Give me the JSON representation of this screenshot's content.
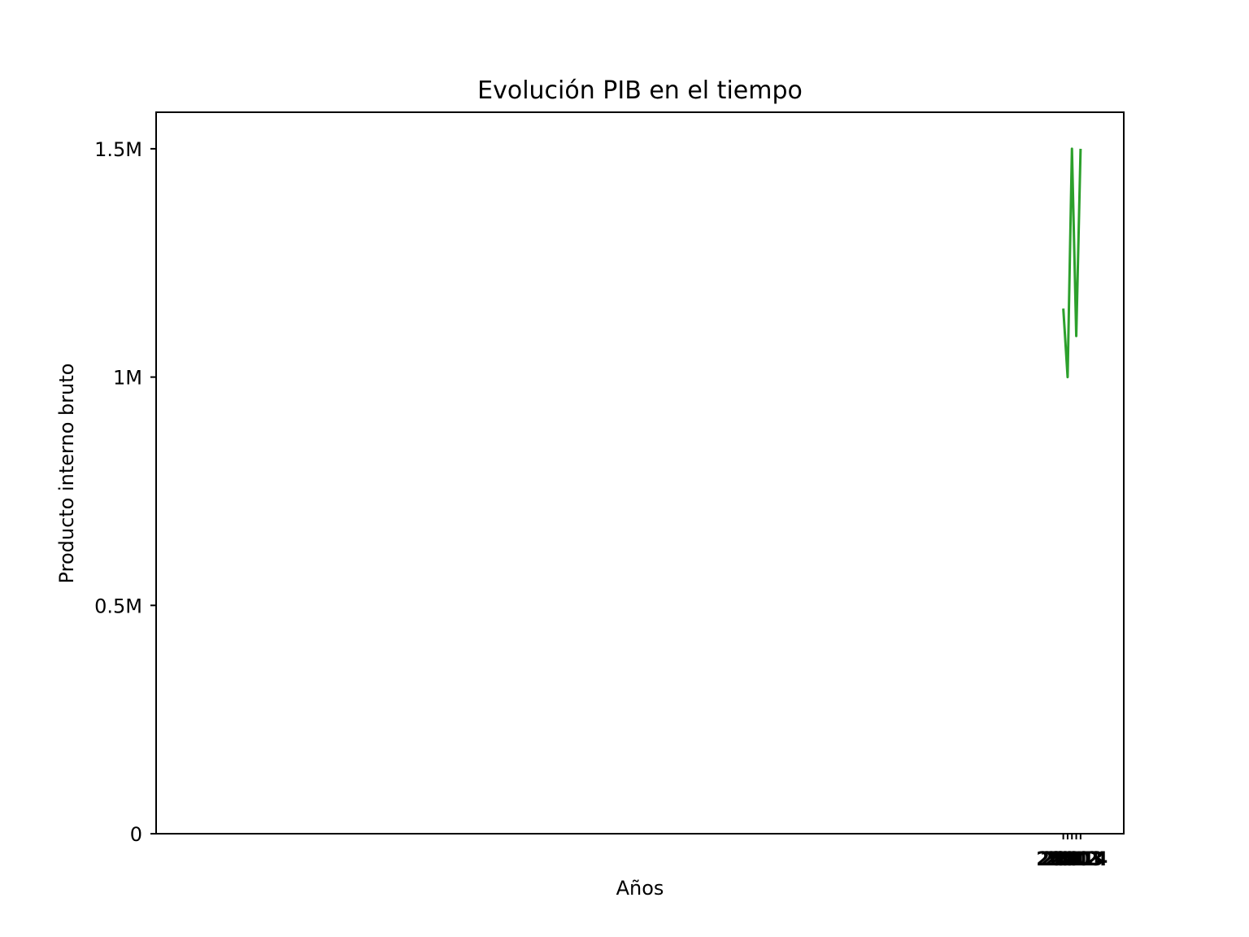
{
  "chart_data": {
    "type": "line",
    "title": "Evolución PIB en el tiempo",
    "xlabel": "Años",
    "ylabel": "Producto interno bruto",
    "ylim": [
      0,
      1580000
    ],
    "xlim": [
      1800,
      2024
    ],
    "yticks": [
      {
        "value": 0,
        "label": "0"
      },
      {
        "value": 500000,
        "label": "0.5M"
      },
      {
        "value": 1000000,
        "label": "1M"
      },
      {
        "value": 1500000,
        "label": "1.5M"
      }
    ],
    "xticks": [
      {
        "value": 2010,
        "label": "2010"
      },
      {
        "value": 2011,
        "label": "2011"
      },
      {
        "value": 2012,
        "label": "2012"
      },
      {
        "value": 2013,
        "label": "2013"
      },
      {
        "value": 2014,
        "label": "2014"
      }
    ],
    "grid": false,
    "color": "#2ca02c",
    "series": [
      {
        "x": [
          2010,
          2011,
          2012,
          2013,
          2014
        ],
        "y": [
          1150000,
          1000000,
          1500000,
          1090000,
          1500000
        ]
      }
    ]
  }
}
